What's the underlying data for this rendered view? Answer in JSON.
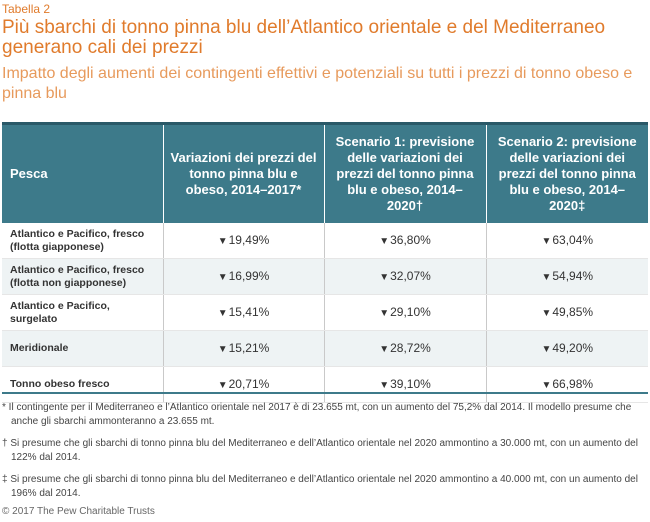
{
  "label": "Tabella 2",
  "title": "Più sbarchi di tonno pinna blu dell’Atlantico orientale e del Mediterraneo generano cali dei prezzi",
  "subtitle": "Impatto degli aumenti dei contingenti effettivi e potenziali su tutti i prezzi di tonno obeso e pinna blu",
  "table": {
    "headers": [
      "Pesca",
      "Variazioni dei prezzi del tonno pinna blu e obeso, 2014–2017*",
      "Scenario 1: previsione delle variazioni dei prezzi del tonno pinna blu e obeso, 2014–2020†",
      "Scenario 2: previsione delle variazioni dei prezzi del tonno pinna blu e obeso, 2014–2020‡"
    ],
    "direction_symbol": "▼",
    "rows": [
      {
        "fishery": "Atlantico e Pacifico, fresco (flotta giapponese)",
        "values": [
          "19,49%",
          "36,80%",
          "63,04%"
        ]
      },
      {
        "fishery": "Atlantico e Pacifico, fresco (flotta non giapponese)",
        "values": [
          "16,99%",
          "32,07%",
          "54,94%"
        ]
      },
      {
        "fishery": "Atlantico e Pacifico, surgelato",
        "values": [
          "15,41%",
          "29,10%",
          "49,85%"
        ]
      },
      {
        "fishery": "Meridionale",
        "values": [
          "15,21%",
          "28,72%",
          "49,20%"
        ]
      },
      {
        "fishery": "Tonno obeso fresco",
        "values": [
          "20,71%",
          "39,10%",
          "66,98%"
        ]
      }
    ]
  },
  "notes": [
    "* Il contingente per il Mediterraneo e l’Atlantico orientale nel 2017 è di 23.655 mt, con un aumento del 75,2% dal 2014. Il modello presume che anche gli sbarchi ammonteranno a 23.655 mt.",
    "† Si presume che gli sbarchi di tonno pinna blu del Mediterraneo e dell’Atlantico orientale nel 2020 ammontino a 30.000 mt, con un aumento del 122% dal 2014.",
    "‡ Si presume che gli sbarchi di tonno pinna blu del Mediterraneo e dell’Atlantico orientale nel 2020 ammontino a 40.000 mt, con un aumento del 196% dal 2014."
  ],
  "copyright": "© 2017 The Pew Charitable Trusts",
  "colors": {
    "accent": "#e07b2c",
    "header_bg": "#3d7a8a",
    "alt_row": "#eef3f4"
  }
}
